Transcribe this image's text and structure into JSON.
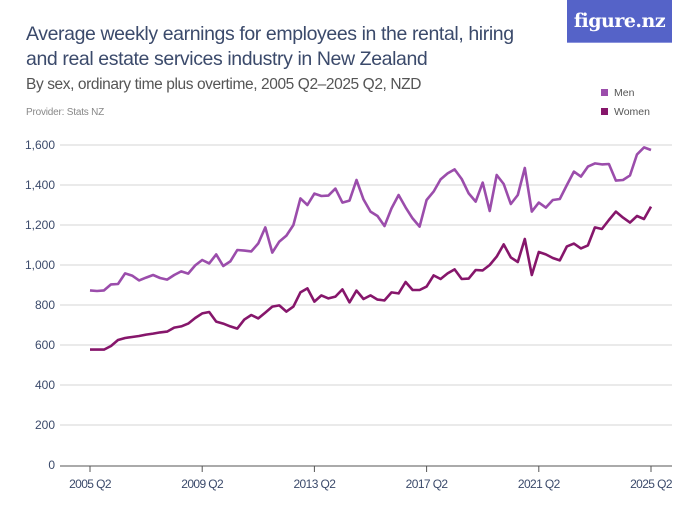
{
  "header": {
    "title": "Average weekly earnings for employees in the rental, hiring and real estate services industry in New Zealand",
    "subtitle": "By sex, ordinary time plus overtime, 2005 Q2–2025 Q2, NZD",
    "provider": "Provider: Stats NZ",
    "logo_text": "figure.nz"
  },
  "colors": {
    "men": "#9b4dab",
    "women": "#86166b",
    "logo_bg": "#5563c8",
    "grid": "#dddddd",
    "axis": "#555555"
  },
  "chart_data": {
    "type": "line",
    "title": "Average weekly earnings for employees in the rental, hiring and real estate services industry in New Zealand",
    "subtitle": "By sex, ordinary time plus overtime, 2005 Q2–2025 Q2, NZD",
    "x_start": "2005 Q2",
    "x_end": "2025 Q2",
    "x_frequency": "quarterly",
    "x_tick_labels": [
      "2005 Q2",
      "2009 Q2",
      "2013 Q2",
      "2017 Q2",
      "2021 Q2",
      "2025 Q2"
    ],
    "y_tick_labels": [
      "0",
      "200",
      "400",
      "600",
      "800",
      "1,000",
      "1,200",
      "1,400",
      "1,600"
    ],
    "ylim": [
      0,
      1600
    ],
    "grid": true,
    "legend_position": "top-right",
    "series": [
      {
        "name": "Men",
        "values": [
          873,
          870,
          873,
          903,
          905,
          958,
          947,
          923,
          937,
          950,
          935,
          927,
          950,
          968,
          957,
          998,
          1025,
          1008,
          1053,
          995,
          1018,
          1075,
          1072,
          1068,
          1108,
          1188,
          1062,
          1117,
          1147,
          1200,
          1333,
          1300,
          1357,
          1345,
          1347,
          1382,
          1312,
          1322,
          1425,
          1328,
          1267,
          1245,
          1195,
          1283,
          1350,
          1288,
          1233,
          1192,
          1325,
          1367,
          1428,
          1458,
          1478,
          1430,
          1358,
          1317,
          1412,
          1270,
          1450,
          1405,
          1305,
          1350,
          1485,
          1267,
          1312,
          1287,
          1325,
          1330,
          1400,
          1467,
          1442,
          1492,
          1508,
          1503,
          1505,
          1422,
          1425,
          1448,
          1553,
          1588,
          1575
        ]
      },
      {
        "name": "Women",
        "values": [
          577,
          577,
          577,
          595,
          625,
          635,
          640,
          645,
          652,
          657,
          663,
          667,
          687,
          693,
          707,
          735,
          758,
          765,
          717,
          707,
          693,
          682,
          727,
          750,
          733,
          762,
          792,
          798,
          767,
          792,
          863,
          883,
          817,
          848,
          833,
          842,
          878,
          813,
          872,
          830,
          848,
          827,
          823,
          863,
          858,
          915,
          875,
          875,
          892,
          948,
          930,
          958,
          978,
          930,
          932,
          975,
          973,
          1000,
          1042,
          1103,
          1038,
          1015,
          1130,
          950,
          1065,
          1053,
          1035,
          1023,
          1093,
          1107,
          1083,
          1098,
          1188,
          1180,
          1225,
          1267,
          1237,
          1212,
          1245,
          1230,
          1292
        ]
      }
    ]
  }
}
